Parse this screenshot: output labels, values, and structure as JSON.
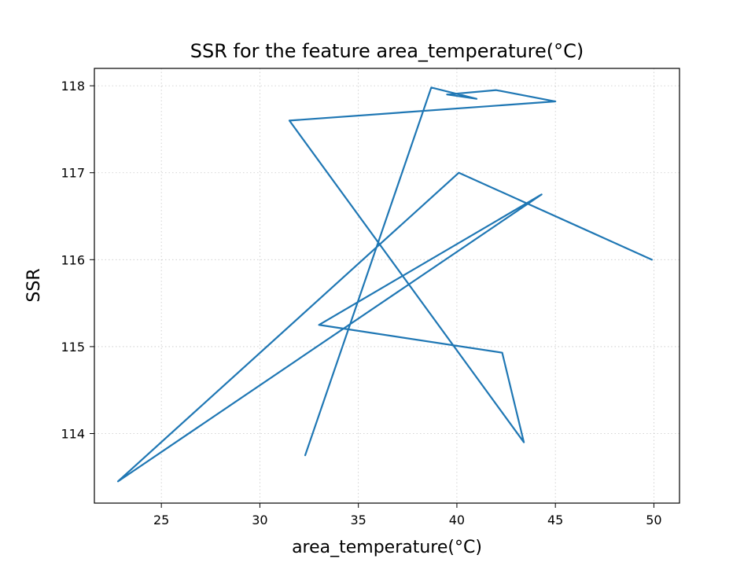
{
  "chart_data": {
    "type": "line",
    "title": "SSR for the feature area_temperature(°C)",
    "xlabel": "area_temperature(°C)",
    "ylabel": "SSR",
    "xlim": [
      21.6,
      51.3
    ],
    "ylim": [
      113.2,
      118.2
    ],
    "xticks": [
      25,
      30,
      35,
      40,
      45,
      50
    ],
    "yticks": [
      114,
      115,
      116,
      117,
      118
    ],
    "xtick_labels": [
      "25",
      "30",
      "35",
      "40",
      "45",
      "50"
    ],
    "ytick_labels": [
      "114",
      "115",
      "116",
      "117",
      "118"
    ],
    "grid": true,
    "color": "#1f77b4",
    "series": [
      {
        "name": "",
        "x": [
          32.3,
          38.7,
          41.0,
          39.5,
          42.0,
          45.0,
          31.5,
          43.4,
          42.3,
          33.0,
          44.3,
          22.8,
          40.1,
          49.9
        ],
        "y": [
          113.75,
          117.98,
          117.85,
          117.9,
          117.95,
          117.82,
          117.6,
          113.9,
          114.93,
          115.25,
          116.75,
          113.45,
          117.0,
          116.0
        ]
      }
    ]
  }
}
